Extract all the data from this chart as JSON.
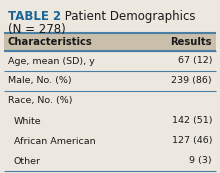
{
  "title_bold": "TABLE 2",
  "title_rest": " Patient Demographics",
  "subtitle": "(N = 278)",
  "title_color": "#1a6496",
  "col1_header": "Characteristics",
  "col2_header": "Results",
  "header_bg": "#c9bfab",
  "row_bg": "#ede8df",
  "border_color": "#4a7fa5",
  "rows": [
    {
      "label": "Age, mean (SD), y",
      "value": "67 (12)",
      "indent": false,
      "divider_above": true
    },
    {
      "label": "Male, No. (%)",
      "value": "239 (86)",
      "indent": false,
      "divider_above": true
    },
    {
      "label": "Race, No. (%)",
      "value": "",
      "indent": false,
      "divider_above": true
    },
    {
      "label": "White",
      "value": "142 (51)",
      "indent": true,
      "divider_above": false
    },
    {
      "label": "African American",
      "value": "127 (46)",
      "indent": true,
      "divider_above": false
    },
    {
      "label": "Other",
      "value": "9 (3)",
      "indent": true,
      "divider_above": false
    }
  ],
  "font_size_title": 8.5,
  "font_size_header": 7.2,
  "font_size_body": 6.8,
  "text_color": "#1a1a1a",
  "outer_bg": "#ede8df"
}
